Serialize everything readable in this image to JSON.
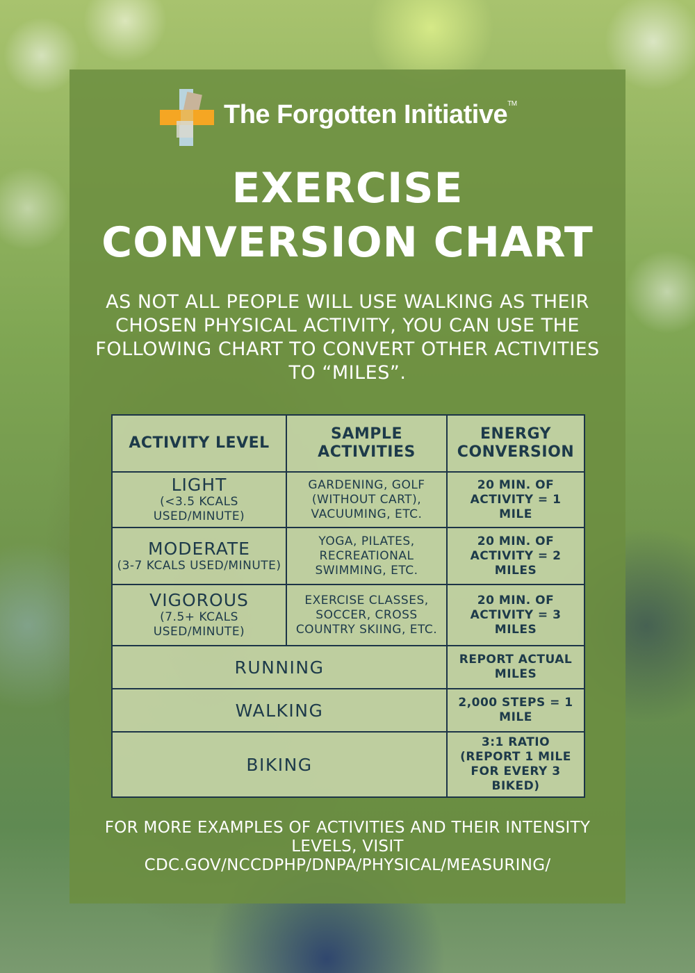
{
  "logo": {
    "name": "The Forgotten Initiative",
    "mark": "TM",
    "colors": {
      "orange": "#f5a623",
      "blue": "#b9d4de",
      "tan": "#c8b49a",
      "gray": "#d8d8d0"
    }
  },
  "title": {
    "line1": "EXERCISE",
    "line2": "CONVERSION CHART"
  },
  "intro": "AS NOT ALL PEOPLE WILL USE WALKING AS THEIR CHOSEN PHYSICAL ACTIVITY, YOU CAN USE THE FOLLOWING CHART TO CONVERT OTHER ACTIVITIES TO “MILES”.",
  "table": {
    "headers": [
      "ACTIVITY LEVEL",
      "SAMPLE ACTIVITIES",
      "ENERGY CONVERSION"
    ],
    "levels": [
      {
        "level": "LIGHT",
        "detail": "(<3.5 KCALS USED/MINUTE)",
        "samples": "GARDENING, GOLF (WITHOUT CART), VACUUMING, ETC.",
        "conversion": "20 MIN. OF ACTIVITY = 1 MILE"
      },
      {
        "level": "MODERATE",
        "detail": "(3-7 KCALS USED/MINUTE)",
        "samples": "YOGA, PILATES, RECREATIONAL SWIMMING, ETC.",
        "conversion": "20 MIN. OF ACTIVITY = 2 MILES"
      },
      {
        "level": "VIGOROUS",
        "detail": "(7.5+ KCALS USED/MINUTE)",
        "samples": "EXERCISE CLASSES, SOCCER, CROSS COUNTRY SKIING, ETC.",
        "conversion": "20 MIN. OF ACTIVITY = 3 MILES"
      }
    ],
    "activities": [
      {
        "activity": "RUNNING",
        "conversion": "REPORT ACTUAL MILES"
      },
      {
        "activity": "WALKING",
        "conversion": "2,000 STEPS = 1 MILE"
      },
      {
        "activity": "BIKING",
        "conversion": "3:1 RATIO (REPORT 1 MILE FOR EVERY 3 BIKED)"
      }
    ]
  },
  "footer": {
    "text": "FOR MORE EXAMPLES OF ACTIVITIES AND THEIR INTENSITY LEVELS, VISIT",
    "link": "CDC.GOV/NCCDPHP/DNPA/PHYSICAL/MEASURING/"
  }
}
